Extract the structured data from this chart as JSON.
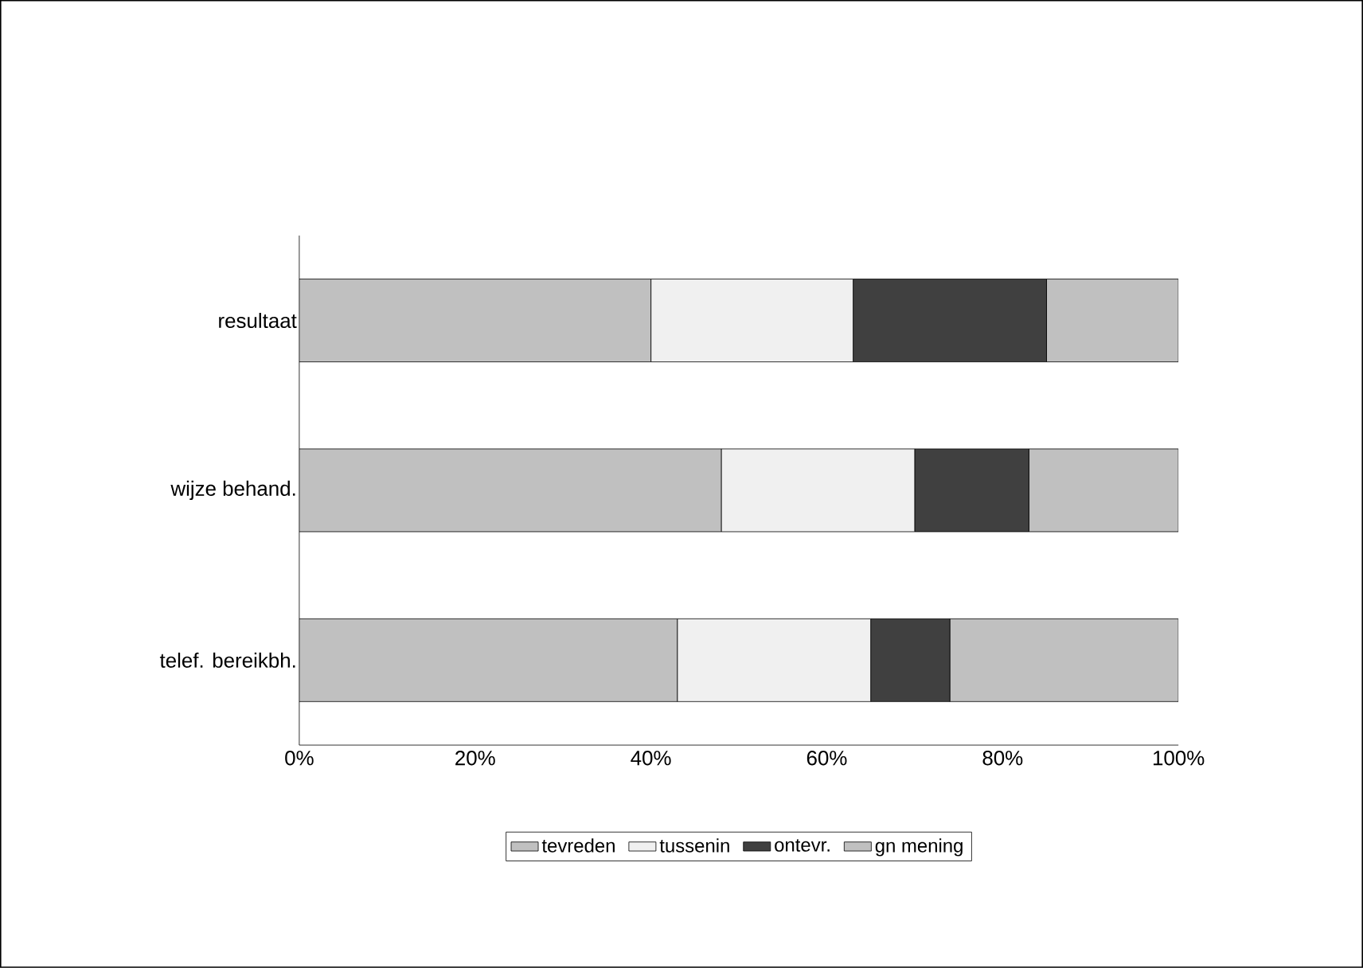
{
  "chart_data": {
    "type": "bar",
    "orientation": "horizontal",
    "stacked": true,
    "categories": [
      "resultaat",
      "wijze behand.",
      "telef. bereikbh."
    ],
    "series": [
      {
        "name": "tevreden",
        "color": "#c0c0c0",
        "values": [
          40,
          48,
          43
        ]
      },
      {
        "name": "tussenin",
        "color": "#f0f0f0",
        "values": [
          23,
          22,
          22
        ]
      },
      {
        "name": "ontevr.",
        "color": "#404040",
        "values": [
          22,
          13,
          9
        ]
      },
      {
        "name": "gn mening",
        "color": "#c0c0c0",
        "values": [
          15,
          17,
          26
        ]
      }
    ],
    "xlim": [
      0,
      100
    ],
    "xticks": [
      {
        "value": 0,
        "label": "0%"
      },
      {
        "value": 20,
        "label": "20%"
      },
      {
        "value": 40,
        "label": "40%"
      },
      {
        "value": 60,
        "label": "60%"
      },
      {
        "value": 80,
        "label": "80%"
      },
      {
        "value": 100,
        "label": "100%"
      }
    ],
    "grid": false,
    "legend": "bottom"
  }
}
